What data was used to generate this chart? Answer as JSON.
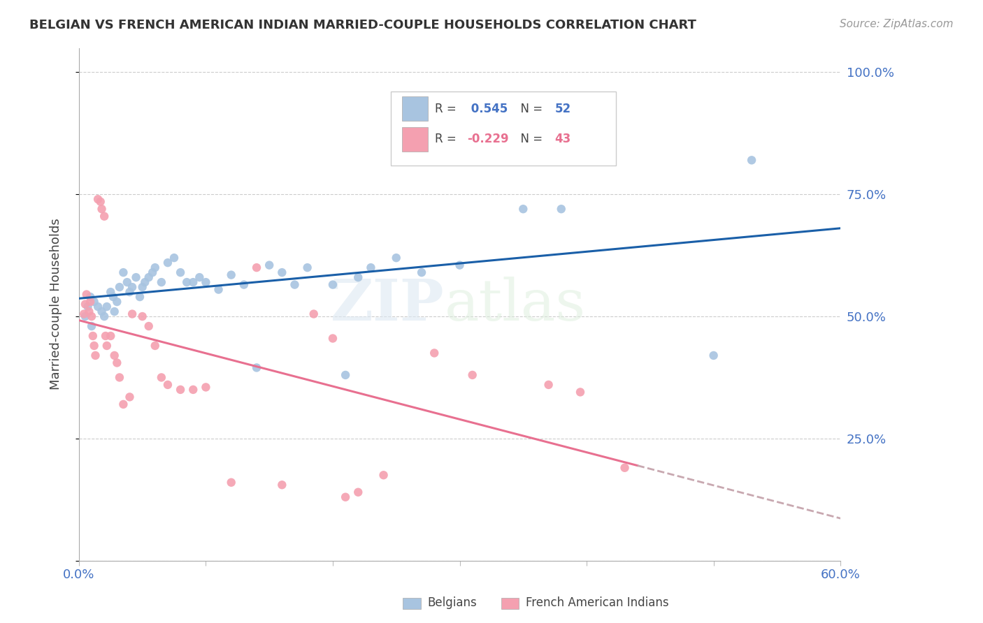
{
  "title": "BELGIAN VS FRENCH AMERICAN INDIAN MARRIED-COUPLE HOUSEHOLDS CORRELATION CHART",
  "source": "Source: ZipAtlas.com",
  "ylabel": "Married-couple Households",
  "xlim": [
    0.0,
    0.6
  ],
  "ylim": [
    0.0,
    1.05
  ],
  "yticks": [
    0.0,
    0.25,
    0.5,
    0.75,
    1.0
  ],
  "ytick_labels": [
    "",
    "25.0%",
    "50.0%",
    "75.0%",
    "100.0%"
  ],
  "xticks": [
    0.0,
    0.1,
    0.2,
    0.3,
    0.4,
    0.5,
    0.6
  ],
  "xtick_labels": [
    "0.0%",
    "",
    "",
    "",
    "",
    "",
    "60.0%"
  ],
  "belgian_R": 0.545,
  "belgian_N": 52,
  "french_R": -0.229,
  "french_N": 43,
  "belgian_color": "#a8c4e0",
  "french_color": "#f4a0b0",
  "belgian_line_color": "#1a5fa8",
  "french_line_color": "#e87090",
  "french_dash_color": "#c8a8b0",
  "belgian_x": [
    0.005,
    0.007,
    0.009,
    0.01,
    0.012,
    0.015,
    0.018,
    0.02,
    0.022,
    0.025,
    0.027,
    0.028,
    0.03,
    0.032,
    0.035,
    0.038,
    0.04,
    0.042,
    0.045,
    0.048,
    0.05,
    0.052,
    0.055,
    0.058,
    0.06,
    0.065,
    0.07,
    0.075,
    0.08,
    0.085,
    0.09,
    0.095,
    0.1,
    0.11,
    0.12,
    0.13,
    0.14,
    0.15,
    0.16,
    0.17,
    0.18,
    0.2,
    0.21,
    0.22,
    0.23,
    0.25,
    0.27,
    0.3,
    0.35,
    0.38,
    0.5,
    0.53
  ],
  "belgian_y": [
    0.5,
    0.52,
    0.54,
    0.48,
    0.53,
    0.52,
    0.51,
    0.5,
    0.52,
    0.55,
    0.54,
    0.51,
    0.53,
    0.56,
    0.59,
    0.57,
    0.55,
    0.56,
    0.58,
    0.54,
    0.56,
    0.57,
    0.58,
    0.59,
    0.6,
    0.57,
    0.61,
    0.62,
    0.59,
    0.57,
    0.57,
    0.58,
    0.57,
    0.555,
    0.585,
    0.565,
    0.395,
    0.605,
    0.59,
    0.565,
    0.6,
    0.565,
    0.38,
    0.58,
    0.6,
    0.62,
    0.59,
    0.605,
    0.72,
    0.72,
    0.42,
    0.82
  ],
  "french_x": [
    0.004,
    0.005,
    0.006,
    0.008,
    0.009,
    0.01,
    0.011,
    0.012,
    0.013,
    0.015,
    0.017,
    0.018,
    0.02,
    0.021,
    0.022,
    0.025,
    0.028,
    0.03,
    0.032,
    0.035,
    0.04,
    0.042,
    0.05,
    0.055,
    0.06,
    0.065,
    0.07,
    0.08,
    0.09,
    0.1,
    0.12,
    0.14,
    0.16,
    0.185,
    0.2,
    0.21,
    0.22,
    0.24,
    0.28,
    0.31,
    0.37,
    0.395,
    0.43
  ],
  "french_y": [
    0.505,
    0.525,
    0.545,
    0.51,
    0.53,
    0.5,
    0.46,
    0.44,
    0.42,
    0.74,
    0.735,
    0.72,
    0.705,
    0.46,
    0.44,
    0.46,
    0.42,
    0.405,
    0.375,
    0.32,
    0.335,
    0.505,
    0.5,
    0.48,
    0.44,
    0.375,
    0.36,
    0.35,
    0.35,
    0.355,
    0.16,
    0.6,
    0.155,
    0.505,
    0.455,
    0.13,
    0.14,
    0.175,
    0.425,
    0.38,
    0.36,
    0.345,
    0.19
  ]
}
